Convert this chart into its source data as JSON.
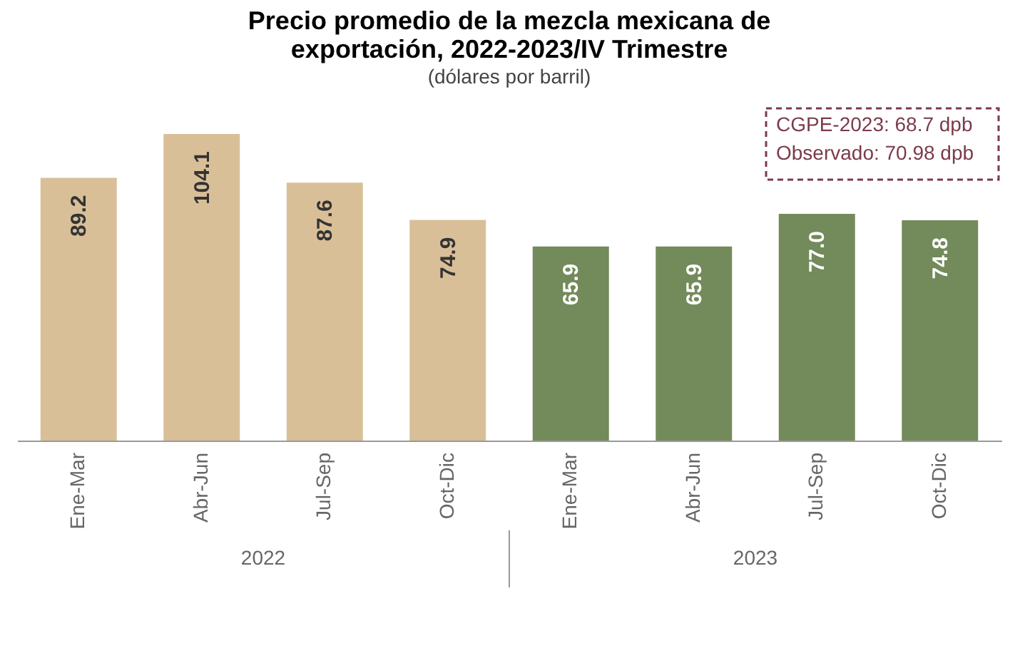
{
  "chart_data": {
    "type": "bar",
    "title": [
      "Precio promedio de la mezcla mexicana de",
      "exportación, 2022-2023/IV Trimestre"
    ],
    "subtitle": "(dólares por barril)",
    "categories": [
      "Ene-Mar",
      "Abr-Jun",
      "Jul-Sep",
      "Oct-Dic",
      "Ene-Mar",
      "Abr-Jun",
      "Jul-Sep",
      "Oct-Dic"
    ],
    "values": [
      89.2,
      104.1,
      87.6,
      74.9,
      65.9,
      65.9,
      77.0,
      74.8
    ],
    "colors": [
      "#d9bf98",
      "#d9bf98",
      "#d9bf98",
      "#d9bf98",
      "#738a5b",
      "#738a5b",
      "#738a5b",
      "#738a5b"
    ],
    "value_labels": [
      "89.2",
      "104.1",
      "87.6",
      "74.9",
      "65.9",
      "65.9",
      "77.0",
      "74.8"
    ],
    "annotations": [
      "2022",
      "2023",
      "CGPE-2023: 68.7 dpb",
      "Observado: 70.98 dpb"
    ]
  }
}
